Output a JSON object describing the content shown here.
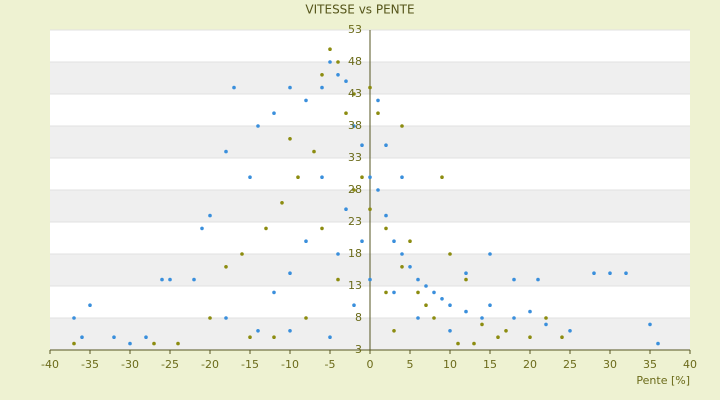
{
  "chart_data": {
    "type": "scatter",
    "title": "VITESSE vs PENTE",
    "x_label": "Pente [%]",
    "xlim": [
      -40,
      40
    ],
    "xticks": [
      -40,
      -35,
      -30,
      -25,
      -20,
      -15,
      -10,
      -5,
      0,
      5,
      10,
      15,
      20,
      25,
      30,
      35,
      40
    ],
    "ylim": [
      3,
      53
    ],
    "yticks": [
      3,
      8,
      13,
      18,
      23,
      28,
      33,
      38,
      43,
      48,
      53
    ],
    "grid": true,
    "series": [
      {
        "color": "#3a8fdc",
        "x": [
          -5,
          -4,
          -6,
          -3,
          -8,
          -10,
          -12,
          -14,
          -17,
          -15,
          -18,
          -20,
          -21,
          -25,
          -26,
          -22,
          -35,
          -37,
          -36,
          -32,
          -30,
          -28,
          -18,
          -10,
          -5,
          -2,
          -1,
          0,
          1,
          2,
          3,
          4,
          5,
          6,
          7,
          8,
          9,
          10,
          12,
          14,
          15,
          18,
          20,
          22,
          25,
          28,
          30,
          32,
          35,
          36,
          2,
          4,
          1,
          -3,
          -6,
          -8,
          -10,
          -12,
          -14,
          -4,
          0,
          3,
          6,
          10,
          12,
          15,
          21,
          18,
          -1,
          -2
        ],
        "values": [
          48,
          46,
          44,
          45,
          42,
          44,
          40,
          38,
          44,
          30,
          34,
          24,
          22,
          14,
          14,
          14,
          10,
          8,
          5,
          5,
          4,
          5,
          8,
          6,
          5,
          38,
          35,
          30,
          28,
          24,
          20,
          18,
          16,
          14,
          13,
          12,
          11,
          10,
          9,
          8,
          10,
          8,
          9,
          7,
          6,
          15,
          15,
          15,
          7,
          4,
          35,
          30,
          42,
          25,
          30,
          20,
          15,
          12,
          6,
          18,
          14,
          12,
          8,
          6,
          15,
          18,
          14,
          14,
          20,
          10
        ]
      },
      {
        "color": "#8c8c10",
        "x": [
          -5,
          -4,
          -6,
          -3,
          -2,
          0,
          1,
          4,
          -7,
          -9,
          -11,
          -13,
          -16,
          -20,
          -24,
          -37,
          -27,
          -15,
          -8,
          -1,
          0,
          2,
          4,
          6,
          8,
          10,
          12,
          14,
          16,
          20,
          22,
          9,
          2,
          -4,
          -6,
          -2,
          3,
          -10,
          5,
          7,
          11,
          13,
          17,
          24,
          -12,
          -18
        ],
        "values": [
          50,
          48,
          46,
          40,
          43,
          44,
          40,
          38,
          34,
          30,
          26,
          22,
          18,
          8,
          4,
          4,
          4,
          5,
          8,
          30,
          25,
          22,
          16,
          12,
          8,
          18,
          14,
          7,
          5,
          5,
          8,
          30,
          12,
          14,
          22,
          28,
          6,
          36,
          20,
          10,
          4,
          4,
          6,
          5,
          5,
          16
        ]
      }
    ]
  }
}
